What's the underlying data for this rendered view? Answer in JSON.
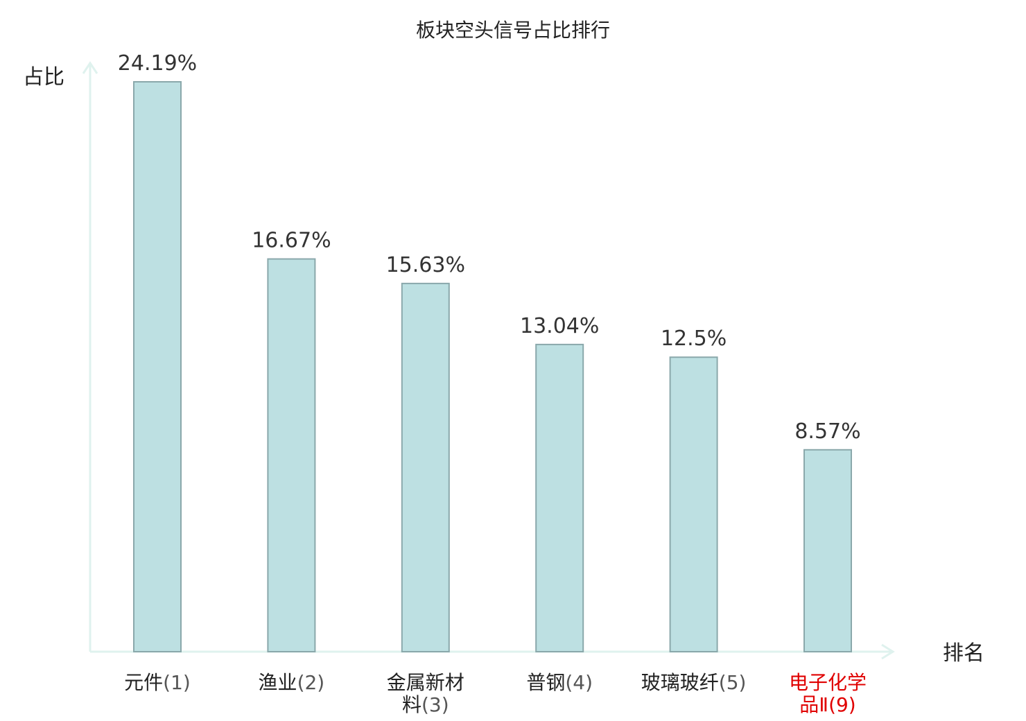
{
  "chart_data": {
    "type": "bar",
    "title": "板块空头信号占比排行",
    "ylabel": "占比",
    "xlabel": "排名",
    "ylim": [
      0,
      25
    ],
    "grid": false,
    "categories": [
      {
        "name_lines": [
          "元件"
        ],
        "rank": "(1)",
        "highlight": false
      },
      {
        "name_lines": [
          "渔业"
        ],
        "rank": "(2)",
        "highlight": false
      },
      {
        "name_lines": [
          "金属新材",
          "料"
        ],
        "rank": "(3)",
        "highlight": false
      },
      {
        "name_lines": [
          "普钢"
        ],
        "rank": "(4)",
        "highlight": false
      },
      {
        "name_lines": [
          "玻璃玻纤"
        ],
        "rank": "(5)",
        "highlight": false
      },
      {
        "name_lines": [
          "电子化学",
          "品Ⅱ"
        ],
        "rank": "(9)",
        "highlight": true
      }
    ],
    "values": [
      24.19,
      16.67,
      15.63,
      13.04,
      12.5,
      8.57
    ],
    "value_labels": [
      "24.19%",
      "16.67%",
      "15.63%",
      "13.04%",
      "12.5%",
      "8.57%"
    ],
    "colors": {
      "bar_fill": "#bde0e2",
      "bar_stroke": "#8aa8ab",
      "axis": "#dff2ee",
      "highlight_text": "#e00000",
      "text": "#222222"
    }
  }
}
